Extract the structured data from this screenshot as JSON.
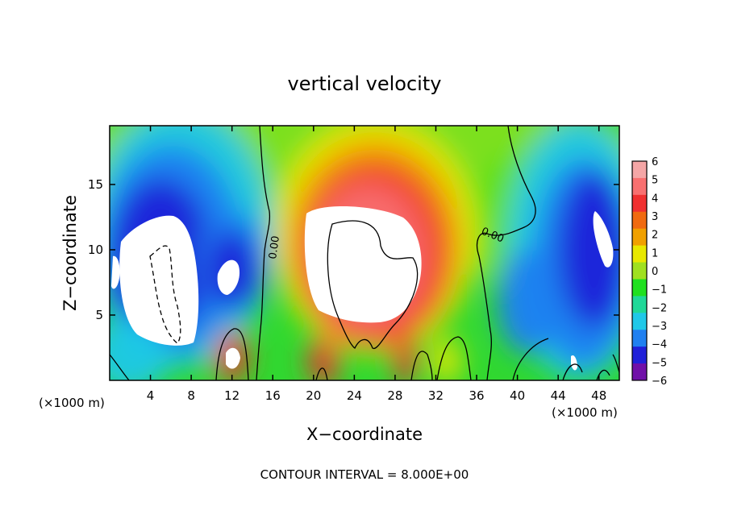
{
  "chart_data": {
    "type": "heatmap",
    "title": "vertical velocity",
    "xlabel": "X−coordinate",
    "ylabel": "Z−coordinate",
    "x_unit_left": "(×1000 m)",
    "x_unit_right": "(×1000 m)",
    "xlim": [
      0,
      50
    ],
    "ylim": [
      0,
      19.5
    ],
    "x_ticks": [
      4,
      8,
      12,
      16,
      20,
      24,
      28,
      32,
      36,
      40,
      44,
      48
    ],
    "y_ticks": [
      5,
      10,
      15
    ],
    "colorbar": {
      "levels": [
        6,
        5,
        4,
        3,
        2,
        1,
        0,
        -1,
        -2,
        -3,
        -4,
        -5,
        -6
      ],
      "tick_labels": [
        "6",
        "5",
        "4",
        "3",
        "2",
        "1",
        "0",
        "−1",
        "−2",
        "−3",
        "−4",
        "−5",
        "−6"
      ],
      "colors": [
        "#f4a6a6",
        "#f87070",
        "#f03030",
        "#f06a10",
        "#f0a000",
        "#e8e800",
        "#a0e020",
        "#20e020",
        "#20d898",
        "#20c8e8",
        "#2080f0",
        "#2020d8",
        "#7010a8"
      ]
    },
    "contour_labels": [
      "0.00",
      "0.00"
    ],
    "footnote": "CONTOUR INTERVAL = 8.000E+00",
    "features": [
      {
        "kind": "updraft",
        "cx": 26,
        "cz": 11,
        "peak": 9
      },
      {
        "kind": "updraft",
        "cx": 12,
        "cz": 1.8,
        "peak": 6
      },
      {
        "kind": "downdraft",
        "cx": 5,
        "cz": 8,
        "peak": -8
      },
      {
        "kind": "downdraft",
        "cx": 47,
        "cz": 10,
        "peak": -7
      },
      {
        "kind": "downdraft",
        "cx": 12,
        "cz": 8.5,
        "peak": -6
      }
    ]
  }
}
